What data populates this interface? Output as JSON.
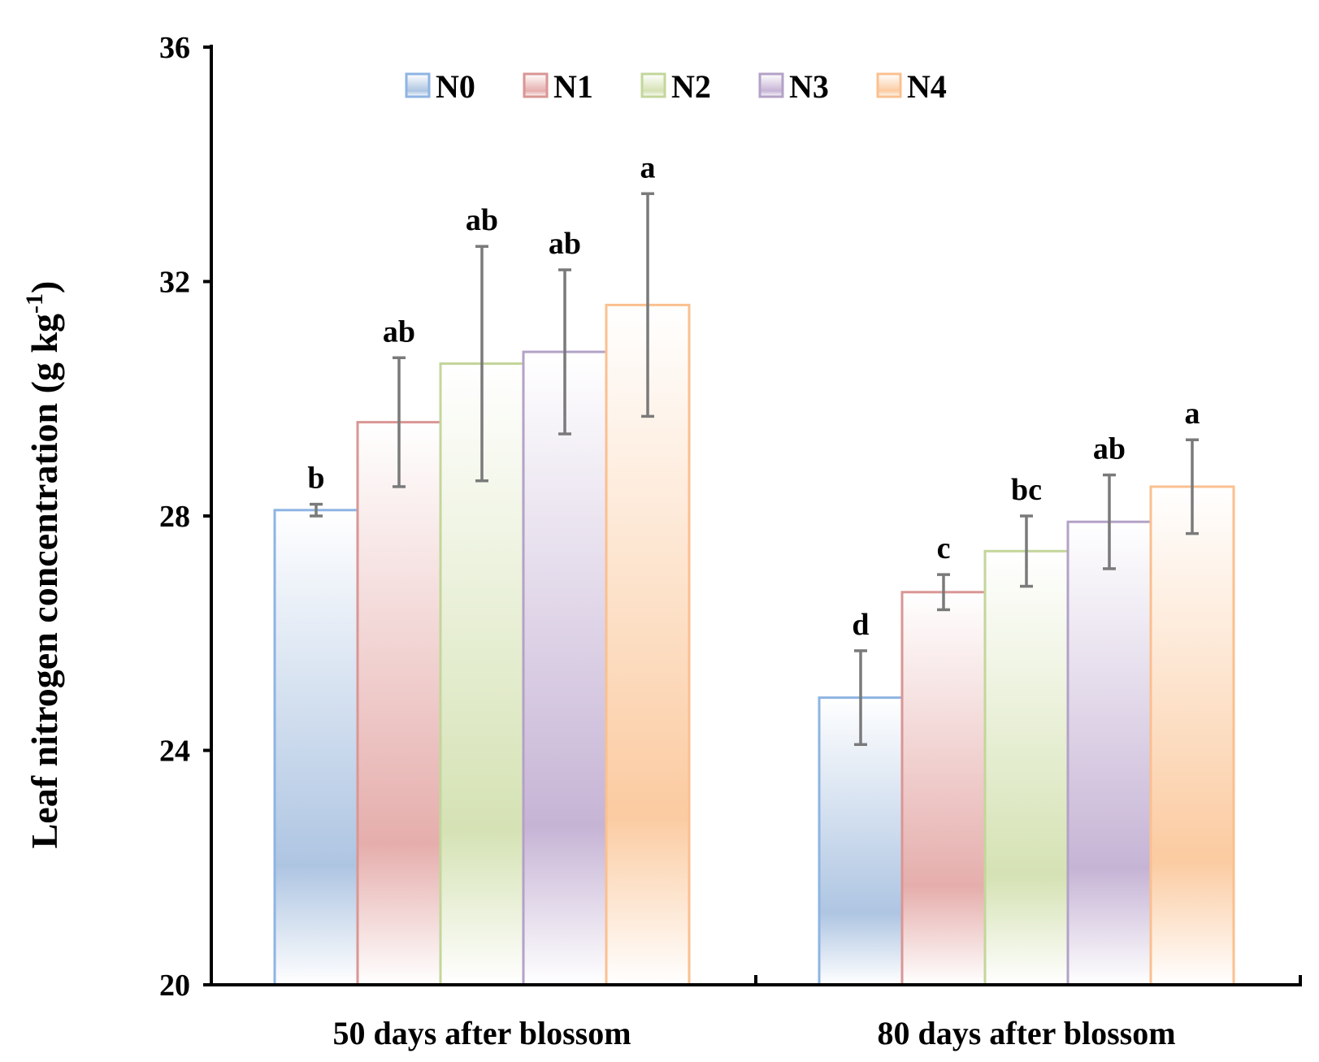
{
  "chart_data": {
    "type": "bar",
    "title": "",
    "xlabel": "",
    "ylabel": "Leaf nitrogen concentration (g kg",
    "ylabel_superscript": "-1",
    "ylabel_suffix": ")",
    "ylim": [
      20,
      36
    ],
    "yticks": [
      20,
      24,
      28,
      32,
      36
    ],
    "grid": false,
    "legend_position": "top-center",
    "categories": [
      "50 days after blossom",
      "80 days after blossom"
    ],
    "series": [
      {
        "name": "N0",
        "color": "#8eb4e3",
        "fill_mid": "#aec5e2",
        "values": [
          28.1,
          24.9
        ],
        "errors": [
          0.1,
          0.8
        ],
        "letters": [
          "b",
          "d"
        ]
      },
      {
        "name": "N1",
        "color": "#d99694",
        "fill_mid": "#e5aeac",
        "values": [
          29.6,
          26.7
        ],
        "errors": [
          1.1,
          0.3
        ],
        "letters": [
          "ab",
          "c"
        ]
      },
      {
        "name": "N2",
        "color": "#c3d69b",
        "fill_mid": "#d5e2b4",
        "values": [
          30.6,
          27.4
        ],
        "errors": [
          2.0,
          0.6
        ],
        "letters": [
          "ab",
          "bc"
        ]
      },
      {
        "name": "N3",
        "color": "#b3a2c7",
        "fill_mid": "#c6b4d5",
        "values": [
          30.8,
          27.9
        ],
        "errors": [
          1.4,
          0.8
        ],
        "letters": [
          "ab",
          "ab"
        ]
      },
      {
        "name": "N4",
        "color": "#fac090",
        "fill_mid": "#fbcba1",
        "values": [
          31.6,
          28.5
        ],
        "errors": [
          1.9,
          0.8
        ],
        "letters": [
          "a",
          "a"
        ]
      }
    ]
  }
}
